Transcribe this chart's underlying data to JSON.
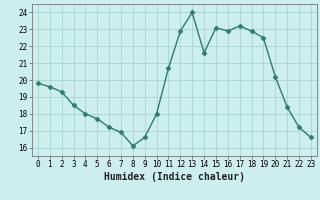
{
  "x": [
    0,
    1,
    2,
    3,
    4,
    5,
    6,
    7,
    8,
    9,
    10,
    11,
    12,
    13,
    14,
    15,
    16,
    17,
    18,
    19,
    20,
    21,
    22,
    23
  ],
  "y": [
    19.8,
    19.6,
    19.3,
    18.5,
    18.0,
    17.7,
    17.2,
    16.9,
    16.1,
    16.6,
    18.0,
    20.7,
    22.9,
    24.0,
    21.6,
    23.1,
    22.9,
    23.2,
    22.9,
    22.5,
    20.2,
    18.4,
    17.2,
    16.6
  ],
  "line_color": "#2e7d6e",
  "marker": "D",
  "marker_size": 2.5,
  "bg_color": "#cceeed",
  "grid_color": "#aad4d0",
  "xlabel": "Humidex (Indice chaleur)",
  "xlim": [
    -0.5,
    23.5
  ],
  "ylim": [
    15.5,
    24.5
  ],
  "yticks": [
    16,
    17,
    18,
    19,
    20,
    21,
    22,
    23,
    24
  ],
  "xticks": [
    0,
    1,
    2,
    3,
    4,
    5,
    6,
    7,
    8,
    9,
    10,
    11,
    12,
    13,
    14,
    15,
    16,
    17,
    18,
    19,
    20,
    21,
    22,
    23
  ],
  "tick_fontsize": 5.5,
  "label_fontsize": 7.0,
  "line_width": 1.0
}
